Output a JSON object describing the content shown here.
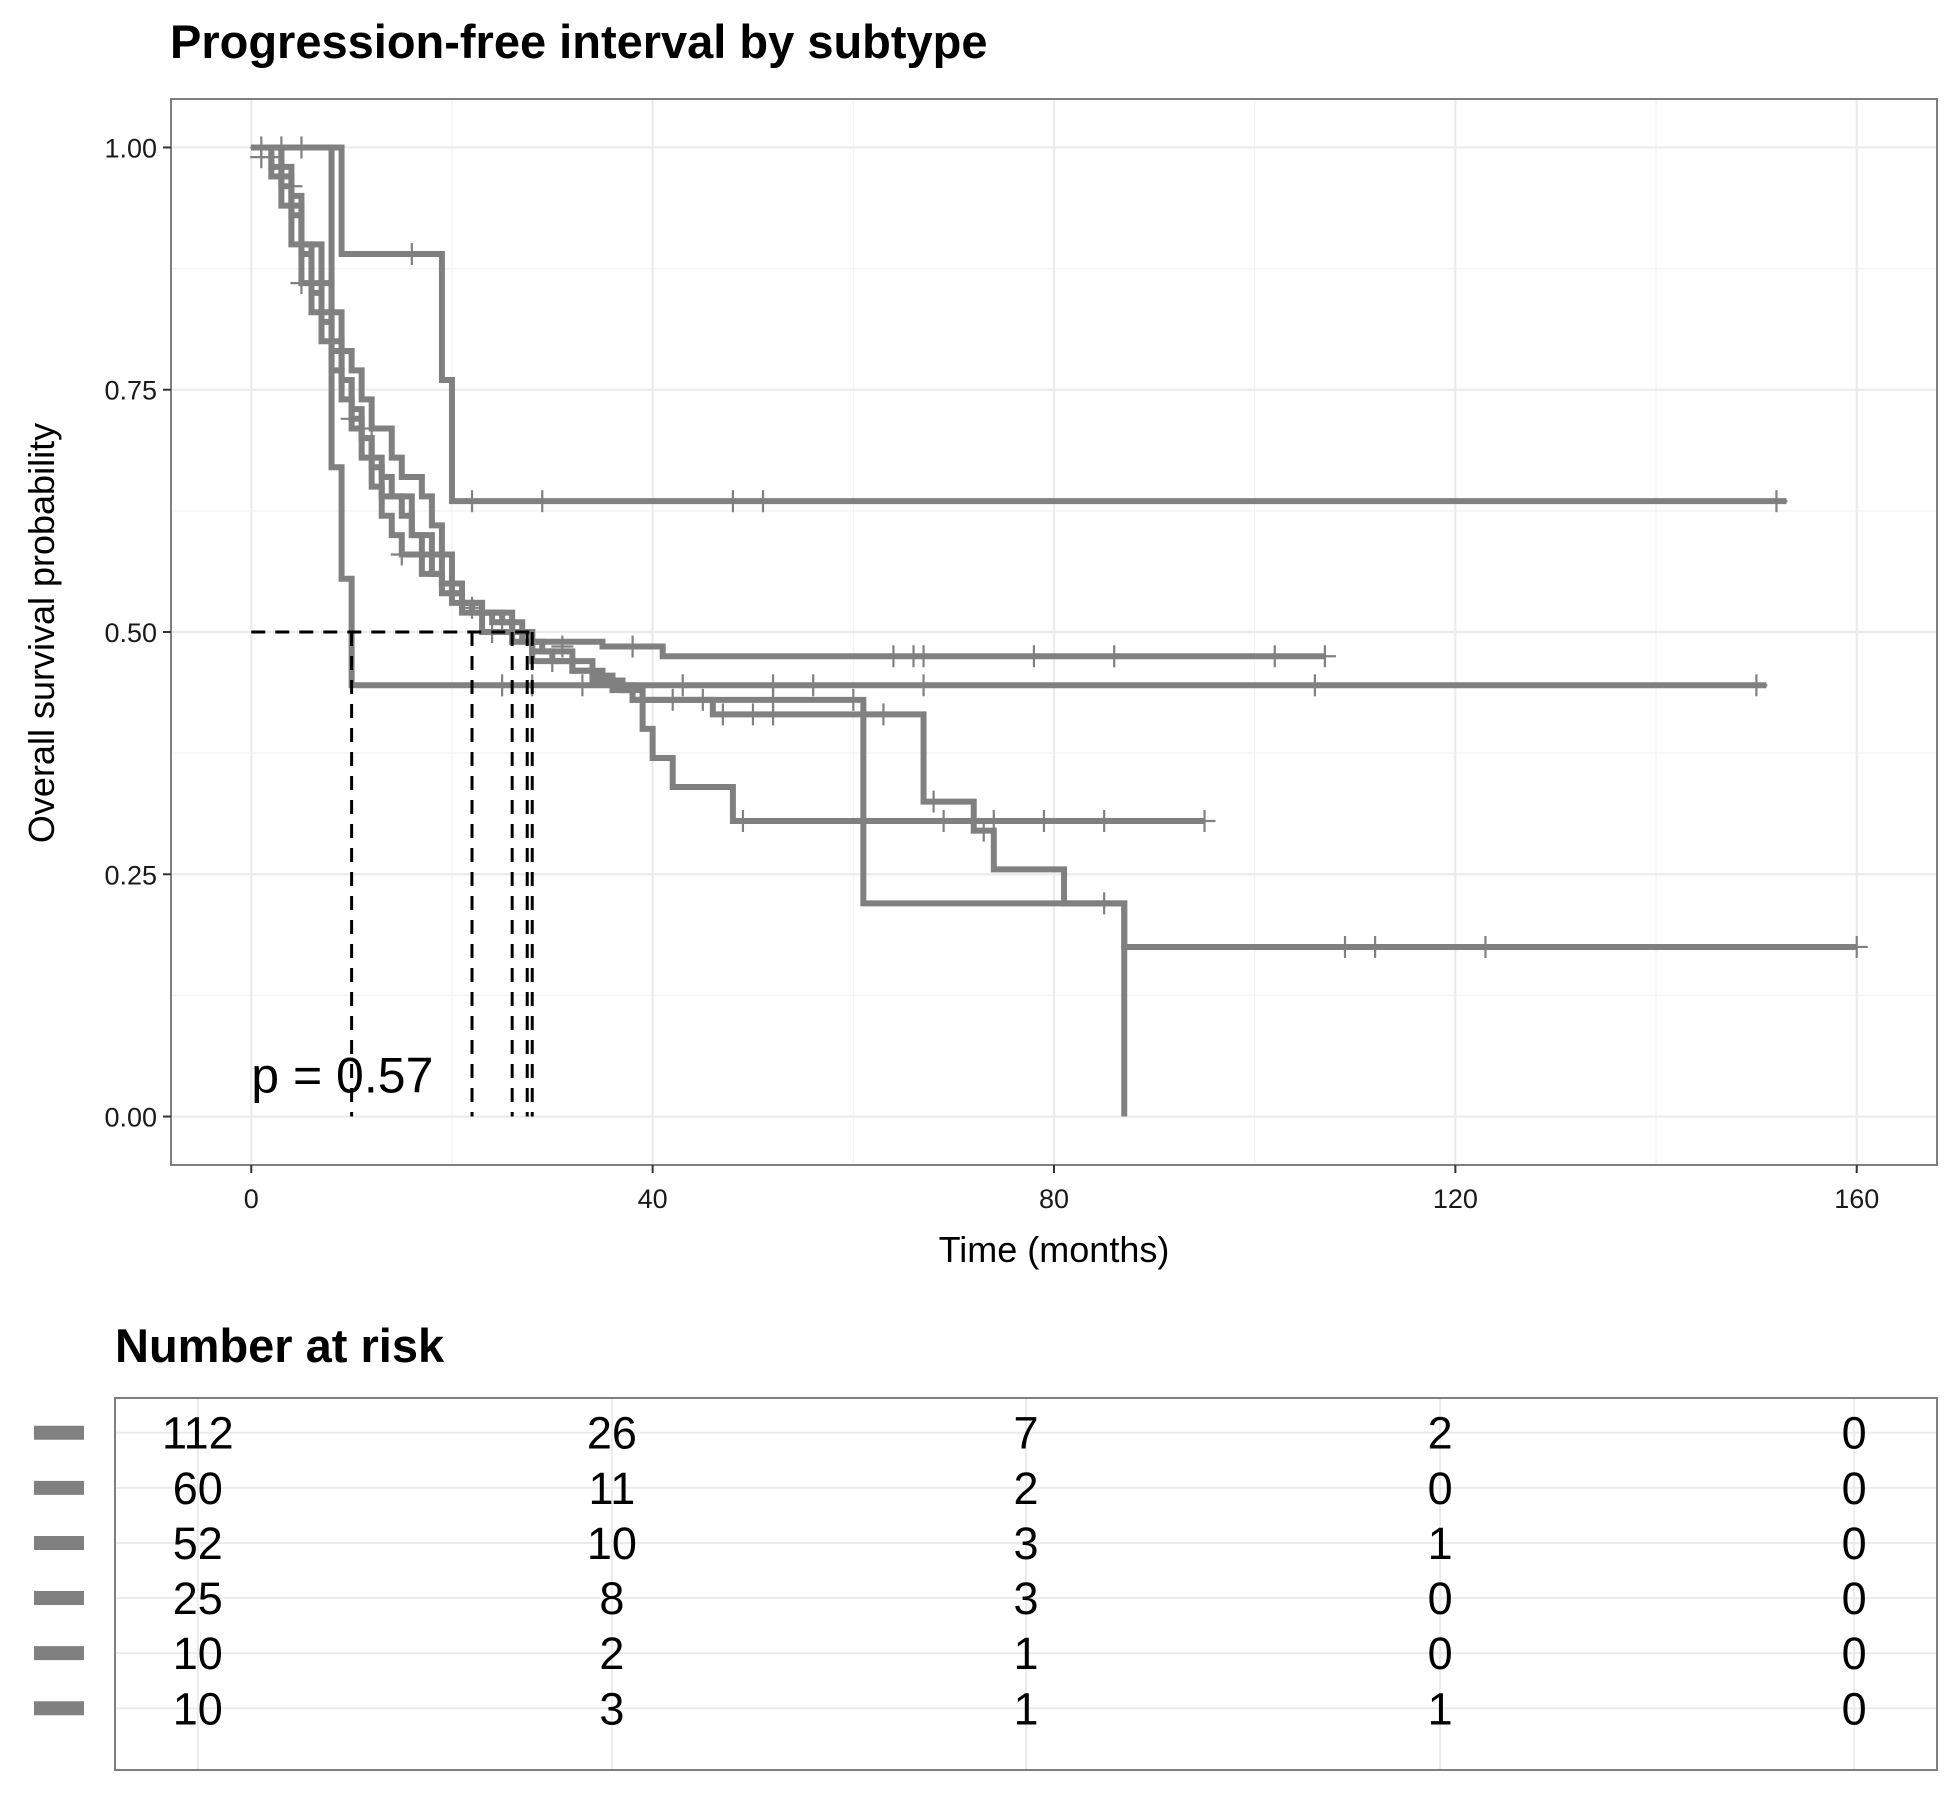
{
  "chart_data": {
    "type": "line",
    "subtype": "kaplan-meier",
    "title": "Progression-free interval by subtype",
    "xlabel": "Time (months)",
    "ylabel": "Overall survival probability",
    "xlim": [
      -8,
      168
    ],
    "ylim": [
      -0.05,
      1.05
    ],
    "x_ticks": [
      0,
      40,
      80,
      120,
      160
    ],
    "y_ticks": [
      0.0,
      0.25,
      0.5,
      0.75,
      1.0
    ],
    "y_tick_labels": [
      "0.00",
      "0.25",
      "0.50",
      "0.75",
      "1.00"
    ],
    "grid": true,
    "line_color": "#808080",
    "p_value_text": "p = 0.57",
    "median_lines": {
      "y": 0.5,
      "x_start": 0,
      "x_end": 28,
      "medians": [
        10,
        22,
        26,
        27.5,
        28
      ]
    },
    "series": [
      {
        "steps": [
          [
            0,
            1.0
          ],
          [
            3,
            0.98
          ],
          [
            4,
            0.95
          ],
          [
            5,
            0.9
          ],
          [
            6,
            0.85
          ],
          [
            7,
            0.82
          ],
          [
            8,
            0.79
          ],
          [
            9,
            0.76
          ],
          [
            10,
            0.72
          ],
          [
            11,
            0.7
          ],
          [
            12,
            0.68
          ],
          [
            13,
            0.66
          ],
          [
            14,
            0.64
          ],
          [
            15,
            0.62
          ],
          [
            16,
            0.6
          ],
          [
            17,
            0.58
          ],
          [
            18,
            0.56
          ],
          [
            19,
            0.55
          ],
          [
            20,
            0.54
          ],
          [
            21,
            0.53
          ],
          [
            23,
            0.52
          ],
          [
            25,
            0.51
          ],
          [
            27,
            0.49
          ],
          [
            29,
            0.48
          ],
          [
            32,
            0.46
          ],
          [
            34,
            0.45
          ],
          [
            36,
            0.44
          ],
          [
            38,
            0.43
          ],
          [
            46,
            0.415
          ],
          [
            61,
            0.415
          ],
          [
            64,
            0.415
          ],
          [
            67,
            0.325
          ],
          [
            72,
            0.295
          ],
          [
            74,
            0.255
          ],
          [
            81,
            0.22
          ],
          [
            87,
            0.175
          ],
          [
            160,
            0.175
          ]
        ],
        "censors": [
          [
            2,
            0.99
          ],
          [
            6,
            0.86
          ],
          [
            10,
            0.72
          ],
          [
            25,
            0.51
          ],
          [
            47,
            0.415
          ],
          [
            50,
            0.415
          ],
          [
            52,
            0.415
          ],
          [
            63,
            0.415
          ],
          [
            68,
            0.325
          ],
          [
            73,
            0.295
          ],
          [
            85,
            0.22
          ],
          [
            109,
            0.175
          ],
          [
            112,
            0.175
          ],
          [
            123,
            0.175
          ],
          [
            160,
            0.175
          ]
        ]
      },
      {
        "steps": [
          [
            0,
            1.0
          ],
          [
            2,
            0.97
          ],
          [
            3,
            0.94
          ],
          [
            4,
            0.9
          ],
          [
            5,
            0.86
          ],
          [
            6,
            0.83
          ],
          [
            7,
            0.8
          ],
          [
            8,
            0.77
          ],
          [
            9,
            0.74
          ],
          [
            10,
            0.71
          ],
          [
            11,
            0.68
          ],
          [
            12,
            0.65
          ],
          [
            13,
            0.62
          ],
          [
            14,
            0.6
          ],
          [
            15,
            0.58
          ],
          [
            17,
            0.56
          ],
          [
            19,
            0.54
          ],
          [
            21,
            0.52
          ],
          [
            23,
            0.5
          ],
          [
            26,
            0.49
          ],
          [
            28,
            0.47
          ],
          [
            32,
            0.46
          ],
          [
            35,
            0.45
          ],
          [
            37,
            0.44
          ],
          [
            39,
            0.43
          ],
          [
            60,
            0.43
          ],
          [
            61,
            0.22
          ],
          [
            86,
            0.22
          ],
          [
            87,
            0.0
          ]
        ],
        "censors": [
          [
            1,
            0.99
          ],
          [
            5,
            0.86
          ],
          [
            15,
            0.58
          ],
          [
            24,
            0.5
          ],
          [
            30,
            0.47
          ],
          [
            42,
            0.43
          ],
          [
            45,
            0.43
          ],
          [
            52,
            0.43
          ],
          [
            60,
            0.43
          ]
        ]
      },
      {
        "steps": [
          [
            0,
            1.0
          ],
          [
            2,
            0.98
          ],
          [
            3,
            0.96
          ],
          [
            4,
            0.93
          ],
          [
            5,
            0.89
          ],
          [
            6,
            0.86
          ],
          [
            7,
            0.83
          ],
          [
            8,
            0.8
          ],
          [
            9,
            0.76
          ],
          [
            10,
            0.73
          ],
          [
            11,
            0.7
          ],
          [
            12,
            0.67
          ],
          [
            13,
            0.64
          ],
          [
            16,
            0.6
          ],
          [
            18,
            0.58
          ],
          [
            19,
            0.55
          ],
          [
            20,
            0.53
          ],
          [
            22,
            0.52
          ],
          [
            24,
            0.51
          ],
          [
            26,
            0.5
          ],
          [
            28,
            0.48
          ],
          [
            30,
            0.47
          ],
          [
            34,
            0.455
          ],
          [
            36,
            0.445
          ],
          [
            38,
            0.43
          ],
          [
            39,
            0.4
          ],
          [
            40,
            0.37
          ],
          [
            42,
            0.34
          ],
          [
            48,
            0.305
          ],
          [
            95,
            0.305
          ]
        ],
        "censors": [
          [
            3,
            0.97
          ],
          [
            8,
            0.8
          ],
          [
            18,
            0.58
          ],
          [
            27,
            0.5
          ],
          [
            49,
            0.305
          ],
          [
            61,
            0.305
          ],
          [
            69,
            0.305
          ],
          [
            74,
            0.305
          ],
          [
            79,
            0.305
          ],
          [
            85,
            0.305
          ],
          [
            95,
            0.305
          ]
        ]
      },
      {
        "steps": [
          [
            0,
            1.0
          ],
          [
            3,
            0.97
          ],
          [
            4,
            0.94
          ],
          [
            5,
            0.9
          ],
          [
            7,
            0.86
          ],
          [
            8,
            0.83
          ],
          [
            9,
            0.79
          ],
          [
            10,
            0.77
          ],
          [
            11,
            0.74
          ],
          [
            12,
            0.71
          ],
          [
            14,
            0.68
          ],
          [
            15,
            0.66
          ],
          [
            17,
            0.64
          ],
          [
            18,
            0.61
          ],
          [
            19,
            0.58
          ],
          [
            20,
            0.55
          ],
          [
            21,
            0.53
          ],
          [
            23,
            0.52
          ],
          [
            26,
            0.5
          ],
          [
            28,
            0.49
          ],
          [
            35,
            0.485
          ],
          [
            41,
            0.475
          ],
          [
            107,
            0.475
          ]
        ],
        "censors": [
          [
            4,
            0.96
          ],
          [
            12,
            0.71
          ],
          [
            22,
            0.525
          ],
          [
            26,
            0.5
          ],
          [
            31,
            0.485
          ],
          [
            38,
            0.485
          ],
          [
            64,
            0.475
          ],
          [
            66,
            0.475
          ],
          [
            67,
            0.475
          ],
          [
            78,
            0.475
          ],
          [
            86,
            0.475
          ],
          [
            102,
            0.475
          ],
          [
            107,
            0.475
          ]
        ]
      },
      {
        "steps": [
          [
            0,
            1.0
          ],
          [
            8,
            1.0
          ],
          [
            9,
            0.89
          ],
          [
            14,
            0.89
          ],
          [
            19,
            0.76
          ],
          [
            20,
            0.635
          ],
          [
            153,
            0.635
          ]
        ],
        "censors": [
          [
            3,
            1.0
          ],
          [
            16,
            0.89
          ],
          [
            22,
            0.635
          ],
          [
            29,
            0.635
          ],
          [
            48,
            0.635
          ],
          [
            51,
            0.635
          ],
          [
            152,
            0.635
          ]
        ]
      },
      {
        "steps": [
          [
            0,
            1.0
          ],
          [
            7,
            1.0
          ],
          [
            8,
            0.67
          ],
          [
            9,
            0.555
          ],
          [
            10,
            0.445
          ],
          [
            151,
            0.445
          ]
        ],
        "censors": [
          [
            1,
            1.0
          ],
          [
            5,
            1.0
          ],
          [
            25,
            0.445
          ],
          [
            28,
            0.445
          ],
          [
            33,
            0.445
          ],
          [
            43,
            0.445
          ],
          [
            52,
            0.445
          ],
          [
            56,
            0.445
          ],
          [
            67,
            0.445
          ],
          [
            106,
            0.445
          ],
          [
            150,
            0.445
          ]
        ]
      }
    ]
  },
  "risk_table": {
    "title": "Number at risk",
    "strata_color": "#808080",
    "times": [
      0,
      40,
      80,
      120,
      160
    ],
    "rows": [
      [
        "112",
        "26",
        "7",
        "2",
        "0"
      ],
      [
        "60",
        "11",
        "2",
        "0",
        "0"
      ],
      [
        "52",
        "10",
        "3",
        "1",
        "0"
      ],
      [
        "25",
        "8",
        "3",
        "0",
        "0"
      ],
      [
        "10",
        "2",
        "1",
        "0",
        "0"
      ],
      [
        "10",
        "3",
        "1",
        "1",
        "0"
      ]
    ]
  }
}
